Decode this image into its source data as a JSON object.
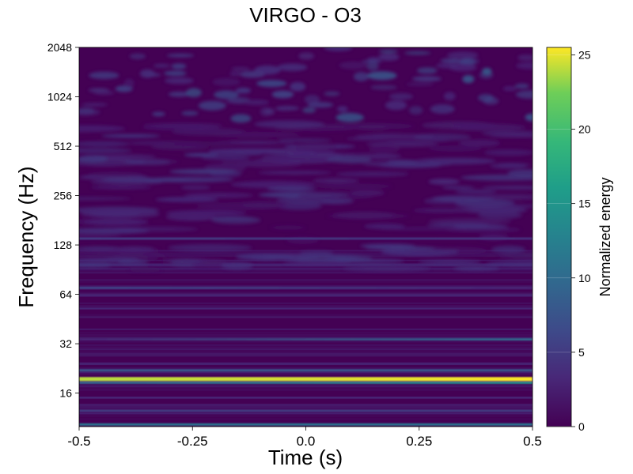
{
  "chart_data": {
    "type": "heatmap",
    "title": "VIRGO - O3",
    "xlabel": "Time (s)",
    "ylabel": "Frequency (Hz)",
    "xlim": [
      -0.5,
      0.5
    ],
    "ylim": [
      10,
      2048
    ],
    "yscale": "log2",
    "x_ticks": [
      -0.5,
      -0.25,
      0.0,
      0.25,
      0.5
    ],
    "x_tick_labels": [
      "-0.5",
      "-0.25",
      "0.0",
      "0.25",
      "0.5"
    ],
    "y_ticks": [
      16,
      32,
      64,
      128,
      256,
      512,
      1024,
      2048
    ],
    "y_tick_labels": [
      "16",
      "32",
      "64",
      "128",
      "256",
      "512",
      "1024",
      "2048"
    ],
    "colorbar": {
      "label": "Normalized energy",
      "range": [
        0,
        25.5
      ],
      "ticks": [
        0,
        5,
        10,
        15,
        20,
        25
      ],
      "tick_labels": [
        "0",
        "5",
        "10",
        "15",
        "20",
        "25"
      ],
      "colormap": "viridis"
    },
    "features": [
      {
        "freq": 19.5,
        "energy_start": 24,
        "energy_end": 25.5
      },
      {
        "freq": 18.5,
        "energy_start": 9,
        "energy_end": 14
      },
      {
        "freq": 22,
        "energy_start": 8,
        "energy_end": 8
      },
      {
        "freq": 34,
        "energy_start": 3,
        "energy_end": 10
      },
      {
        "freq": 10.3,
        "energy_start": 11,
        "energy_end": 11
      },
      {
        "freq": 12.5,
        "energy_start": 5,
        "energy_end": 5
      },
      {
        "freq": 70,
        "energy_start": 6,
        "energy_end": 3
      },
      {
        "freq": 140,
        "energy_start": 5,
        "energy_end": 4
      }
    ]
  }
}
